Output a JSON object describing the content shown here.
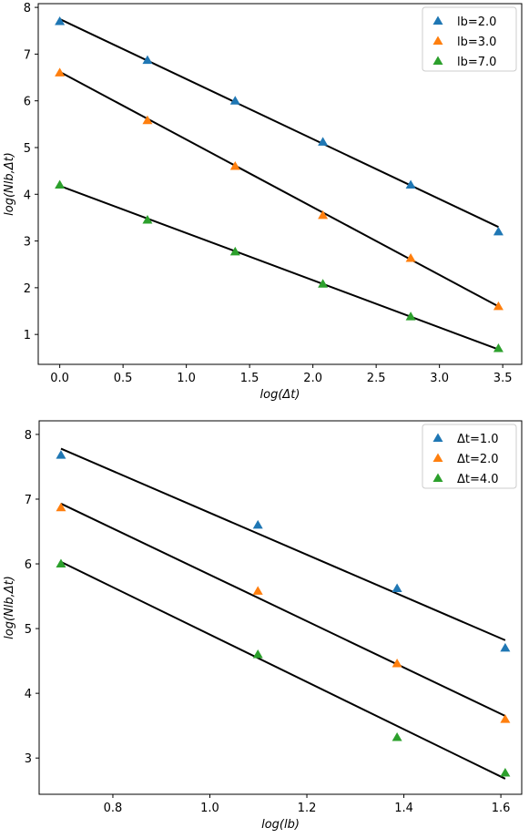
{
  "chart_data": [
    {
      "type": "scatter",
      "xlabel": "log(Δt)",
      "ylabel": "log(Nlb,Δt)",
      "x": [
        0,
        0.693,
        1.386,
        2.079,
        2.773,
        3.466
      ],
      "series": [
        {
          "name": "lb=2.0",
          "color": "#1f77b4",
          "values": [
            7.7,
            6.87,
            6.0,
            5.12,
            4.2,
            3.2
          ]
        },
        {
          "name": "lb=3.0",
          "color": "#ff7f0e",
          "values": [
            6.6,
            5.58,
            4.6,
            3.55,
            2.63,
            1.6
          ]
        },
        {
          "name": "lb=7.0",
          "color": "#2ca02c",
          "values": [
            4.2,
            3.45,
            2.77,
            2.08,
            1.38,
            0.7
          ]
        }
      ],
      "fits": [
        {
          "x": [
            0,
            3.466
          ],
          "values": [
            7.75,
            3.3
          ]
        },
        {
          "x": [
            0,
            3.466
          ],
          "values": [
            6.62,
            1.6
          ]
        },
        {
          "x": [
            0,
            3.466
          ],
          "values": [
            4.18,
            0.68
          ]
        }
      ],
      "xlim": [
        -0.17,
        3.65
      ],
      "ylim": [
        0.36,
        8.08
      ],
      "xticks": [
        {
          "value": 0,
          "label": "0.0"
        },
        0.5,
        {
          "value": 1,
          "label": "1.0"
        },
        1.5,
        {
          "value": 2,
          "label": "2.0"
        },
        2.5,
        {
          "value": 3,
          "label": "3.0"
        },
        3.5
      ],
      "yticks": [
        1,
        2,
        3,
        4,
        5,
        6,
        7,
        8
      ],
      "legend": "upper right"
    },
    {
      "type": "scatter",
      "xlabel": "log(lb)",
      "ylabel": "log(Nlb,Δt)",
      "x": [
        0.693,
        1.099,
        1.386,
        1.609
      ],
      "series": [
        {
          "name": "Δt=1.0",
          "color": "#1f77b4",
          "values": [
            7.68,
            6.6,
            5.62,
            4.7
          ]
        },
        {
          "name": "Δt=2.0",
          "color": "#ff7f0e",
          "values": [
            6.87,
            5.58,
            4.46,
            3.6
          ]
        },
        {
          "name": "Δt=4.0",
          "color": "#2ca02c",
          "values": [
            6.0,
            4.6,
            3.32,
            2.77
          ]
        }
      ],
      "fits": [
        {
          "x": [
            0.693,
            1.609
          ],
          "values": [
            7.78,
            4.82
          ]
        },
        {
          "x": [
            0.693,
            1.609
          ],
          "values": [
            6.93,
            3.65
          ]
        },
        {
          "x": [
            0.693,
            1.609
          ],
          "values": [
            6.03,
            2.68
          ]
        }
      ],
      "xlim": [
        0.648,
        1.643
      ],
      "ylim": [
        2.44,
        8.21
      ],
      "xticks": [
        0.8,
        {
          "value": 1,
          "label": "1.0"
        },
        1.2,
        1.4,
        1.6
      ],
      "yticks": [
        3,
        4,
        5,
        6,
        7,
        8
      ],
      "legend": "upper right"
    }
  ]
}
